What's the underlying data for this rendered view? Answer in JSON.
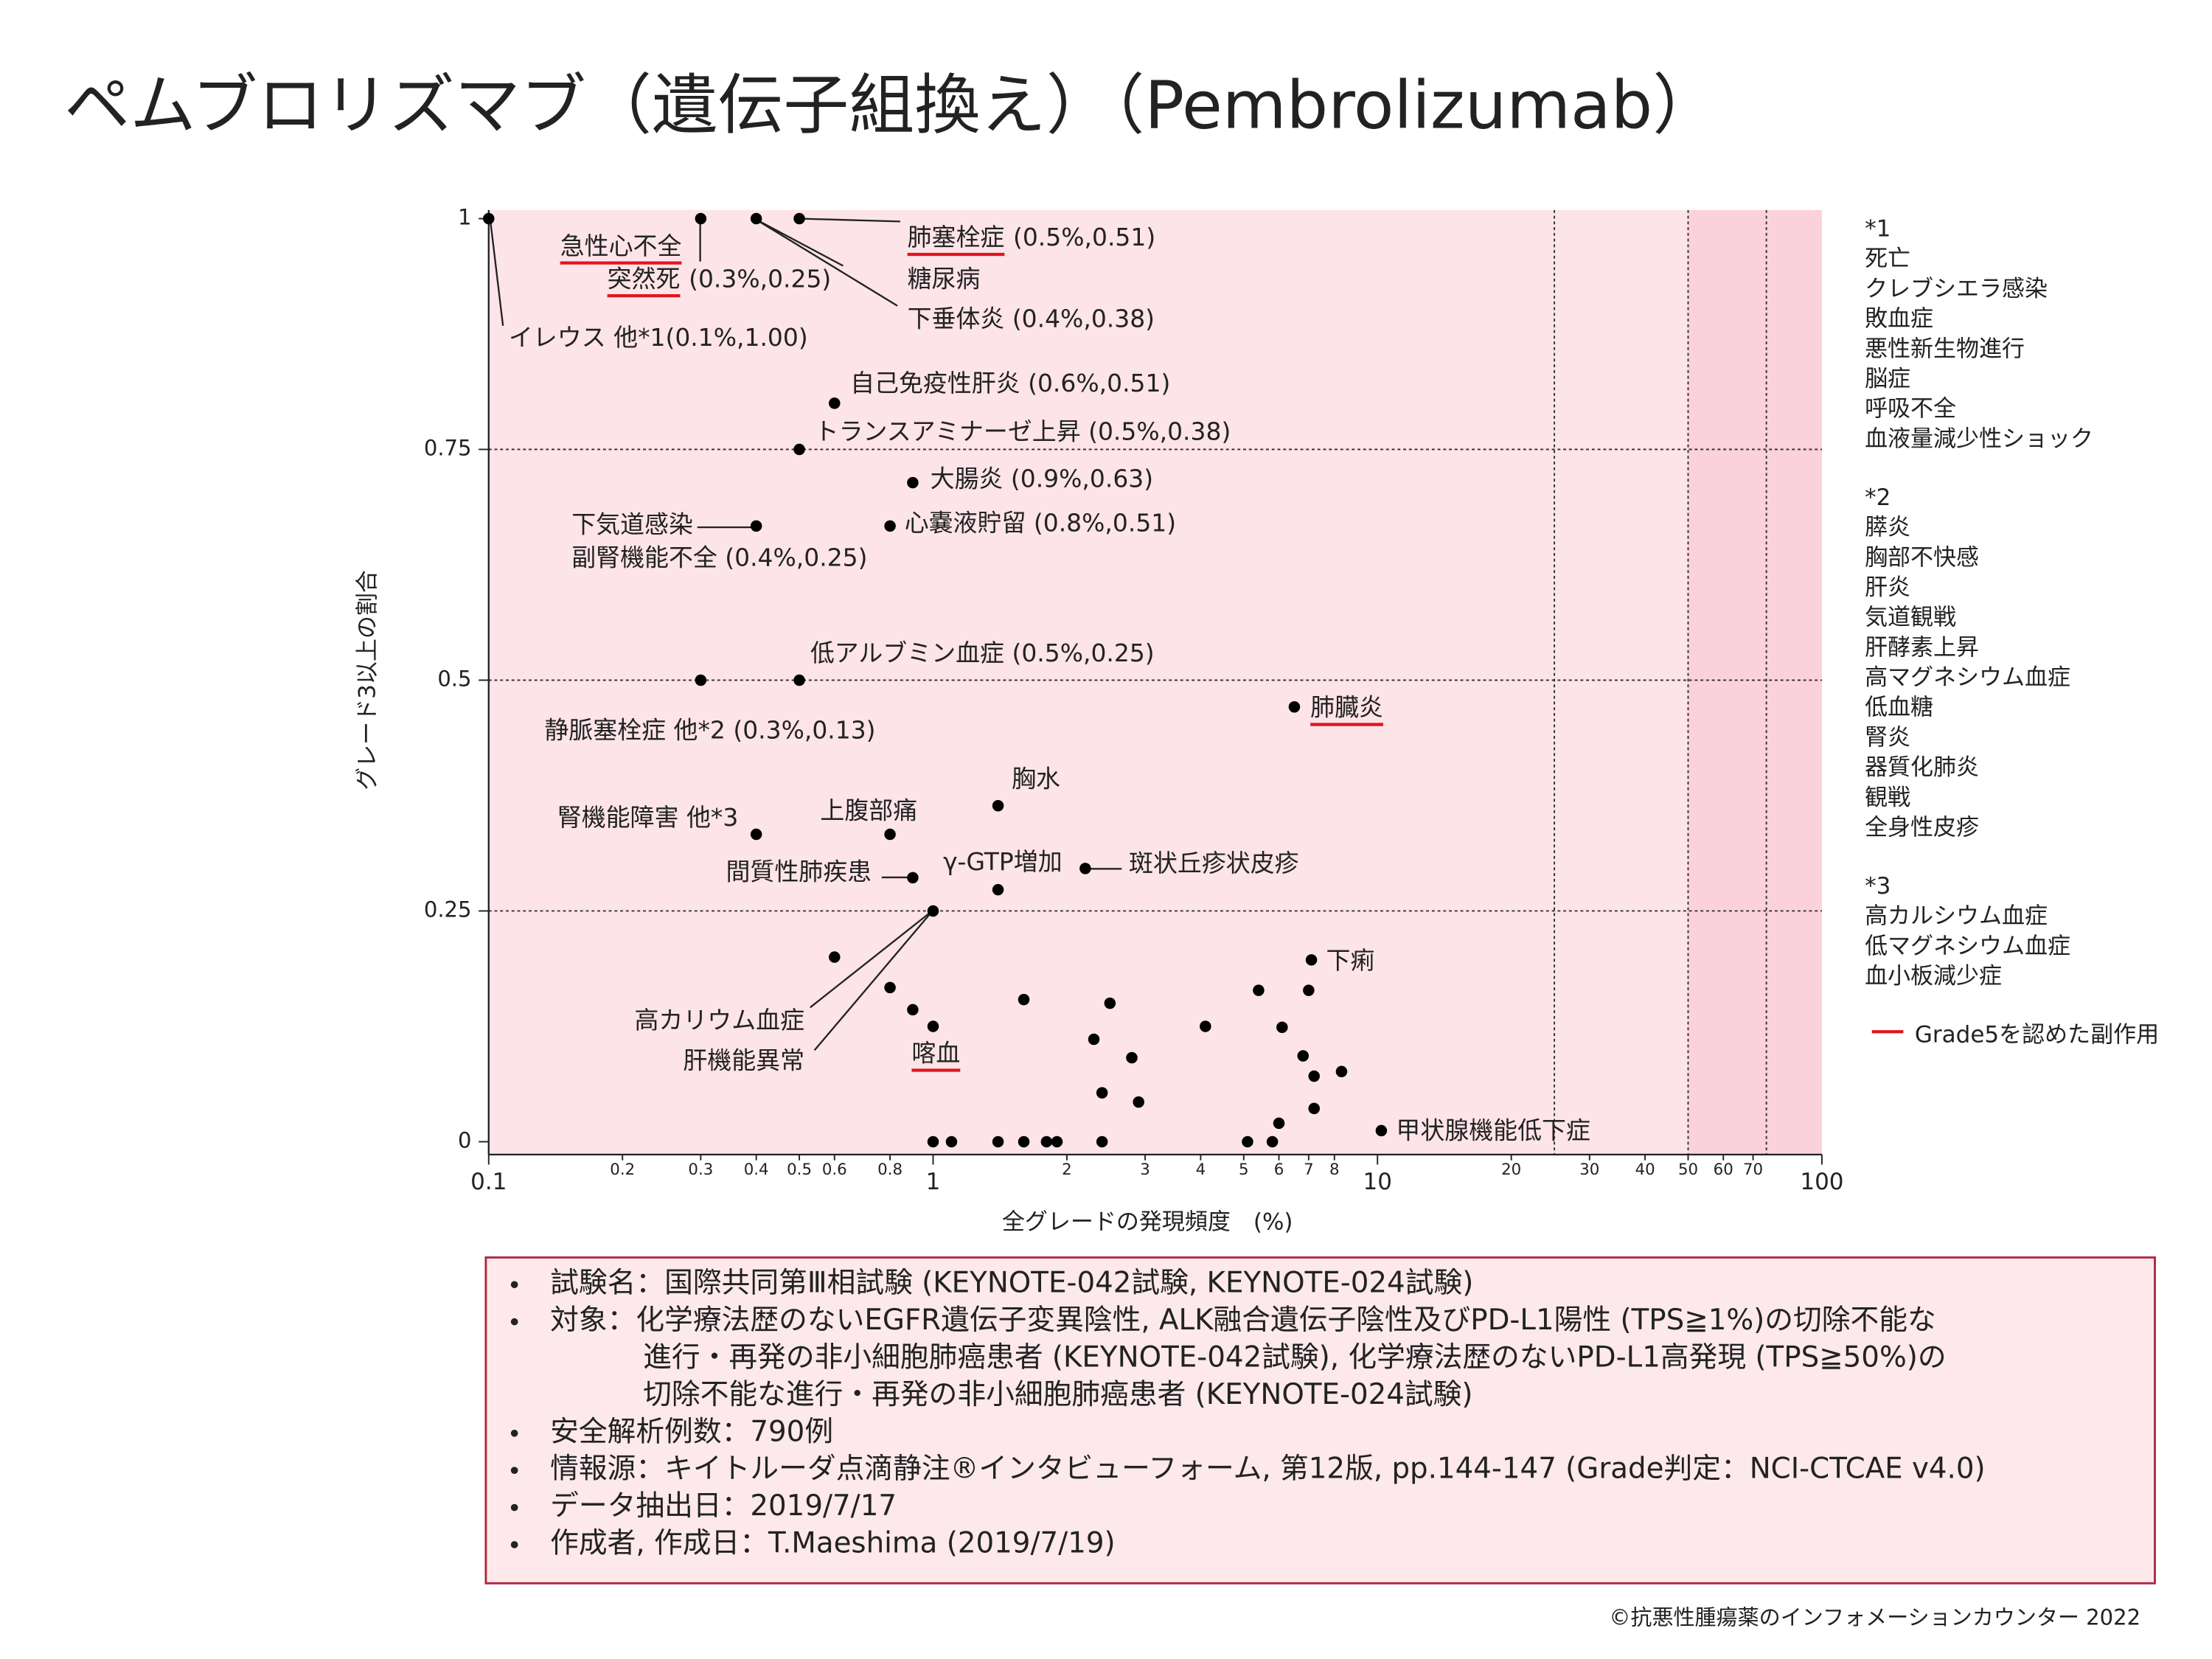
{
  "title": "ペムブロリズマブ（遺伝子組換え）（Pembrolizumab）",
  "chart_data": {
    "type": "scatter",
    "x_label": "全グレードの発現頻度　(%)",
    "y_label": "グレード3以上の割合",
    "xscale": "log",
    "xlim": [
      0.1,
      100
    ],
    "ylim": [
      0,
      1
    ],
    "xticks": [
      0.1,
      0.2,
      0.3,
      0.4,
      0.5,
      0.6,
      0.8,
      1,
      2,
      3,
      4,
      5,
      6,
      7,
      8,
      10,
      20,
      30,
      40,
      50,
      60,
      70,
      100
    ],
    "yticks": [
      0,
      0.25,
      0.5,
      0.75,
      1
    ],
    "ref_lines": {
      "x": [
        25,
        50,
        75
      ],
      "y": [
        0.25,
        0.5,
        0.75
      ]
    },
    "bands": [
      {
        "x": [
          0.1,
          100
        ],
        "color": "#fde4e9"
      },
      {
        "x": [
          50,
          100
        ],
        "color": "#fbd2db"
      }
    ],
    "series": [
      {
        "color": "#000000",
        "x": [
          0.1,
          0.3,
          0.4,
          0.5,
          0.6,
          0.5,
          0.9,
          0.8,
          0.4,
          0.3,
          0.5,
          6.5,
          1.4,
          0.4,
          0.8,
          2.2,
          0.9,
          1.4,
          1,
          0.6,
          7.1,
          0.8,
          5.4,
          7,
          1.6,
          2.5,
          0.9,
          1,
          4.1,
          6.1,
          2.3,
          2.8,
          6.8,
          8.3,
          7.2,
          2.4,
          2.9,
          7.2,
          6,
          10.2,
          1,
          1.1,
          1.4,
          1.6,
          1.8,
          1.9,
          2.4,
          5.1,
          5.8
        ],
        "values": [
          1,
          1,
          1,
          1,
          0.8,
          0.75,
          0.714,
          0.667,
          0.667,
          0.5,
          0.5,
          0.471,
          0.364,
          0.333,
          0.333,
          0.296,
          0.286,
          0.273,
          0.25,
          0.2,
          0.197,
          0.167,
          0.164,
          0.164,
          0.154,
          0.15,
          0.143,
          0.125,
          0.125,
          0.124,
          0.111,
          0.091,
          0.093,
          0.076,
          0.071,
          0.053,
          0.043,
          0.036,
          0.02,
          0.012,
          0,
          0,
          0,
          0,
          0,
          0,
          0,
          0,
          0
        ]
      }
    ],
    "grade5_color": "#e0161f",
    "annotations": [
      {
        "text": "イレウス 他*1(0.1%,1.00)"
      },
      {
        "text": "急性心不全",
        "grade5": true
      },
      {
        "text": "突然死",
        "detail": "(0.3%,0.25)",
        "grade5": true
      },
      {
        "text": "肺塞栓症",
        "detail": "(0.5%,0.51)",
        "grade5": true
      },
      {
        "text": "糖尿病"
      },
      {
        "text": "下垂体炎 (0.4%,0.38)"
      },
      {
        "text": "自己免疫性肝炎 (0.6%,0.51)"
      },
      {
        "text": "トランスアミナーゼ上昇 (0.5%,0.38)"
      },
      {
        "text": "大腸炎 (0.9%,0.63)"
      },
      {
        "text": "心嚢液貯留 (0.8%,0.51)"
      },
      {
        "text": "下気道感染"
      },
      {
        "text": "副腎機能不全 (0.4%,0.25)"
      },
      {
        "text": "低アルブミン血症 (0.5%,0.25)"
      },
      {
        "text": "静脈塞栓症 他*2 (0.3%,0.13)"
      },
      {
        "text": "肺臓炎",
        "grade5": true
      },
      {
        "text": "胸水"
      },
      {
        "text": "腎機能障害 他*3"
      },
      {
        "text": "上腹部痛"
      },
      {
        "text": "間質性肺疾患"
      },
      {
        "text": "γ-GTP増加"
      },
      {
        "text": "斑状丘疹状皮疹"
      },
      {
        "text": "下痢"
      },
      {
        "text": "高カリウム血症"
      },
      {
        "text": "肝機能異常"
      },
      {
        "text": "喀血",
        "grade5": true
      },
      {
        "text": "甲状腺機能低下症"
      }
    ]
  },
  "notes": [
    {
      "heading": "*1",
      "items": [
        "死亡",
        "クレブシエラ感染",
        "敗血症",
        "悪性新生物進行",
        "脳症",
        "呼吸不全",
        "血液量減少性ショック"
      ]
    },
    {
      "heading": "*2",
      "items": [
        "膵炎",
        "胸部不快感",
        "肝炎",
        "気道観戦",
        "肝酵素上昇",
        "高マグネシウム血症",
        "低血糖",
        "腎炎",
        "器質化肺炎",
        "観戦",
        "全身性皮疹"
      ]
    },
    {
      "heading": "*3",
      "items": [
        "高カルシウム血症",
        "低マグネシウム血症",
        "血小板減少症"
      ]
    }
  ],
  "legend_note": "Grade5を認めた副作用",
  "study": [
    [
      "試験名：国際共同第Ⅲ相試験 (KEYNOTE-042試験, KEYNOTE-024試験)"
    ],
    [
      "対象：化学療法歴のないEGFR遺伝子変異陰性, ALK融合遺伝子陰性及びPD-L1陽性 (TPS≧1%)の切除不能な",
      "進行・再発の非小細胞肺癌患者 (KEYNOTE-042試験), 化学療法歴のないPD-L1高発現 (TPS≧50%)の",
      "切除不能な進行・再発の非小細胞肺癌患者 (KEYNOTE-024試験)"
    ],
    [
      "安全解析例数：790例"
    ],
    [
      "情報源：キイトルーダ点滴静注®インタビューフォーム, 第12版, pp.144-147 (Grade判定：NCI-CTCAE v4.0)"
    ],
    [
      "データ抽出日：2019/7/17"
    ],
    [
      "作成者, 作成日：T.Maeshima (2019/7/19)"
    ]
  ],
  "footer": "©抗悪性腫瘍薬のインフォメーションカウンター 2022"
}
